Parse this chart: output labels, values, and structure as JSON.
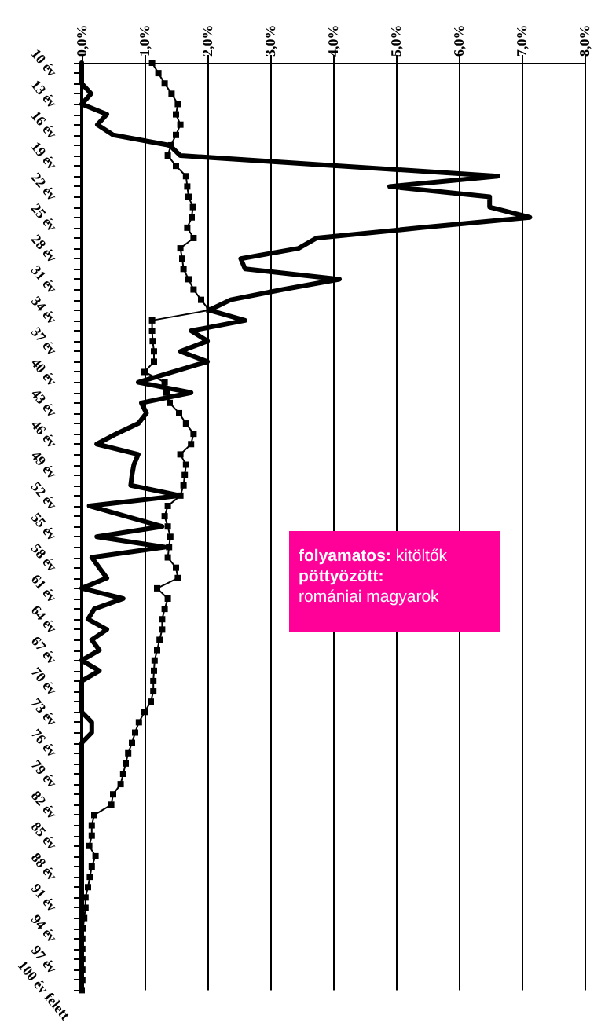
{
  "chart_data": {
    "type": "line",
    "orientation": "horizontal",
    "categories": [
      "10 év",
      null,
      null,
      "13 év",
      null,
      null,
      "16 év",
      null,
      null,
      "19 év",
      null,
      null,
      "22 év",
      null,
      null,
      "25 év",
      null,
      null,
      "28 év",
      null,
      null,
      "31 év",
      null,
      null,
      "34 év",
      null,
      null,
      "37 év",
      null,
      null,
      "40 év",
      null,
      null,
      "43 év",
      null,
      null,
      "46 év",
      null,
      null,
      "49 év",
      null,
      null,
      "52 év",
      null,
      null,
      "55 év",
      null,
      null,
      "58 év",
      null,
      null,
      "61 év",
      null,
      null,
      "64 év",
      null,
      null,
      "67 év",
      null,
      null,
      "70 év",
      null,
      null,
      "73 év",
      null,
      null,
      "76 év",
      null,
      null,
      "79 év",
      null,
      null,
      "82 év",
      null,
      null,
      "85 év",
      null,
      null,
      "88 év",
      null,
      null,
      "91 év",
      null,
      null,
      "94 év",
      null,
      null,
      "97 év",
      null,
      null,
      "100 év felett"
    ],
    "series": [
      {
        "color": "#000000",
        "marker": "none",
        "values": [
          0,
          0,
          0,
          0.15,
          0,
          0.4,
          0.25,
          0.5,
          1.4,
          1.57,
          4.1,
          6.62,
          4.9,
          6.49,
          6.49,
          7.13,
          5.4,
          3.74,
          3.45,
          2.53,
          2.6,
          4.1,
          3.2,
          2.37,
          2.03,
          2.6,
          1.74,
          2.0,
          1.57,
          2.0,
          1.45,
          0.9,
          1.74,
          0.95,
          1.03,
          0.9,
          0.55,
          0.24,
          0.9,
          0.83,
          0.8,
          0.78,
          1.57,
          0.12,
          0.7,
          1.28,
          0.24,
          1.32,
          0.16,
          0.28,
          0.4,
          0,
          0.66,
          0.2,
          0.1,
          0.4,
          0.16,
          0.28,
          0,
          0.28,
          0,
          0,
          0,
          0,
          0.16,
          0.16,
          0,
          0,
          0,
          0,
          0,
          0,
          0,
          0,
          0,
          0,
          0,
          0,
          0,
          0,
          0,
          0,
          0,
          0,
          0,
          0,
          0,
          0,
          0,
          0,
          0
        ]
      },
      {
        "color": "#000000",
        "marker": "square",
        "values": [
          1.12,
          1.22,
          1.32,
          1.43,
          1.53,
          1.5,
          1.57,
          1.5,
          1.42,
          1.37,
          1.5,
          1.66,
          1.68,
          1.7,
          1.77,
          1.75,
          1.68,
          1.78,
          1.57,
          1.6,
          1.62,
          1.7,
          1.78,
          1.9,
          2.03,
          1.12,
          1.12,
          1.13,
          1.15,
          1.15,
          1.0,
          1.32,
          1.35,
          1.4,
          1.55,
          1.66,
          1.78,
          1.74,
          1.57,
          1.66,
          1.64,
          1.62,
          1.57,
          1.37,
          1.32,
          1.37,
          1.41,
          1.39,
          1.37,
          1.5,
          1.53,
          1.2,
          1.37,
          1.32,
          1.28,
          1.28,
          1.24,
          1.2,
          1.16,
          1.15,
          1.14,
          1.14,
          1.1,
          1.0,
          0.91,
          0.85,
          0.8,
          0.74,
          0.7,
          0.66,
          0.62,
          0.5,
          0.47,
          0.2,
          0.16,
          0.16,
          0.12,
          0.22,
          0.16,
          0.13,
          0.1,
          0.06,
          0.06,
          0.04,
          0.02,
          0.01,
          0.01,
          0.01,
          0.01,
          0.01,
          0
        ]
      }
    ],
    "xlim": [
      0,
      8
    ],
    "xticks": [
      {
        "value": 0,
        "label": "0,0%"
      },
      {
        "value": 1,
        "label": "1,0%"
      },
      {
        "value": 2,
        "label": "2,0%"
      },
      {
        "value": 3,
        "label": "3,0%"
      },
      {
        "value": 4,
        "label": "4,0%"
      },
      {
        "value": 5,
        "label": "5,0%"
      },
      {
        "value": 6,
        "label": "6,0%"
      },
      {
        "value": 7,
        "label": "7,0%"
      },
      {
        "value": 8,
        "label": "8,0%"
      }
    ],
    "grid": "x",
    "line_style": "solid",
    "annotations": [
      "folyamatos: kitöltők",
      "pöttyözött:",
      "romániai magyarok"
    ]
  }
}
